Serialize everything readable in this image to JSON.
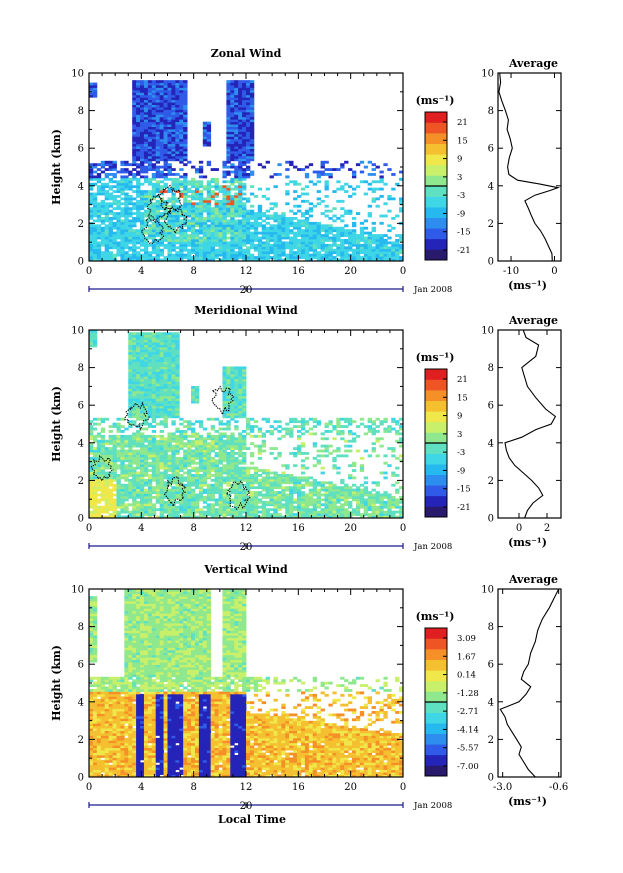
{
  "chart_data": [
    {
      "type": "heatmap",
      "title": "Zonal Wind",
      "ylabel": "Height (km)",
      "xlim": [
        0,
        24
      ],
      "ylim": [
        0,
        10
      ],
      "xticks": [
        "0",
        "4",
        "8",
        "12",
        "16",
        "20",
        "0"
      ],
      "yticks": [
        "0",
        "2",
        "4",
        "6",
        "8",
        "10"
      ],
      "date_label": "Jan 2008",
      "date_tick": "20",
      "colorbar": {
        "unit": "(ms⁻¹)",
        "ticks": [
          "21",
          "15",
          "9",
          "3",
          "-3",
          "-9",
          "-15",
          "-21"
        ],
        "min": -24,
        "max": 24
      },
      "average": {
        "title": "Average",
        "xlabel": "(ms⁻¹)",
        "xticks": [
          "-10",
          "0"
        ],
        "xlim": [
          -13,
          1.5
        ],
        "yticks": [
          "0",
          "2",
          "4",
          "6",
          "8",
          "10"
        ],
        "profile": [
          [
            -0.5,
            0
          ],
          [
            -0.6,
            0.4
          ],
          [
            -1.4,
            0.8
          ],
          [
            -2.2,
            1.2
          ],
          [
            -3.2,
            1.6
          ],
          [
            -4.5,
            2.0
          ],
          [
            -5.3,
            2.4
          ],
          [
            -6.0,
            2.8
          ],
          [
            -6.8,
            3.2
          ],
          [
            -4.5,
            3.5
          ],
          [
            -1.0,
            3.75
          ],
          [
            0.8,
            3.9
          ],
          [
            -3.5,
            4.1
          ],
          [
            -8.5,
            4.3
          ],
          [
            -10.5,
            4.6
          ],
          [
            -10.8,
            5.0
          ],
          [
            -10.4,
            5.5
          ],
          [
            -9.7,
            6.0
          ],
          [
            -10.2,
            6.5
          ],
          [
            -10.9,
            7.0
          ],
          [
            -10.6,
            7.5
          ],
          [
            -11.3,
            8.0
          ],
          [
            -12.1,
            8.5
          ],
          [
            -12.8,
            9.0
          ],
          [
            -12.4,
            9.5
          ],
          [
            -12.6,
            10.0
          ]
        ]
      },
      "seed": 11,
      "contours": [
        [
          4.9,
          1.6
        ],
        [
          5.3,
          2.8
        ],
        [
          6.6,
          2.2
        ],
        [
          6.2,
          3.3
        ]
      ]
    },
    {
      "type": "heatmap",
      "title": "Meridional Wind",
      "ylabel": "Height (km)",
      "xlim": [
        0,
        24
      ],
      "ylim": [
        0,
        10
      ],
      "xticks": [
        "0",
        "4",
        "8",
        "12",
        "16",
        "20",
        "0"
      ],
      "yticks": [
        "0",
        "2",
        "4",
        "6",
        "8",
        "10"
      ],
      "date_label": "Jan 2008",
      "date_tick": "20",
      "colorbar": {
        "unit": "(ms⁻¹)",
        "ticks": [
          "21",
          "15",
          "9",
          "3",
          "-3",
          "-9",
          "-15",
          "-21"
        ],
        "min": -24,
        "max": 24
      },
      "average": {
        "title": "Average",
        "xlabel": "(ms⁻¹)",
        "xticks": [
          "0",
          "2"
        ],
        "xlim": [
          -1.5,
          3.0
        ],
        "yticks": [
          "0",
          "2",
          "4",
          "6",
          "8",
          "10"
        ],
        "profile": [
          [
            0.4,
            0
          ],
          [
            0.6,
            0.4
          ],
          [
            1.0,
            0.8
          ],
          [
            1.7,
            1.2
          ],
          [
            1.4,
            1.6
          ],
          [
            0.9,
            2.0
          ],
          [
            0.3,
            2.4
          ],
          [
            -0.3,
            2.8
          ],
          [
            -0.7,
            3.2
          ],
          [
            -0.9,
            3.6
          ],
          [
            -1.0,
            4.0
          ],
          [
            0.2,
            4.3
          ],
          [
            1.2,
            4.7
          ],
          [
            2.3,
            5.0
          ],
          [
            2.6,
            5.4
          ],
          [
            1.9,
            5.8
          ],
          [
            1.2,
            6.4
          ],
          [
            0.6,
            7.0
          ],
          [
            0.4,
            7.5
          ],
          [
            0.2,
            8.0
          ],
          [
            1.2,
            8.6
          ],
          [
            1.4,
            9.2
          ],
          [
            0.5,
            9.6
          ],
          [
            0.3,
            10.0
          ]
        ]
      },
      "seed": 23,
      "contours": [
        [
          3.7,
          5.4
        ],
        [
          10.2,
          6.3
        ],
        [
          1.0,
          2.6
        ],
        [
          6.6,
          1.4
        ],
        [
          11.4,
          1.2
        ]
      ]
    },
    {
      "type": "heatmap",
      "title": "Vertical Wind",
      "xlabel": "Local Time",
      "ylabel": "Height (km)",
      "xlim": [
        0,
        24
      ],
      "ylim": [
        0,
        10
      ],
      "xticks": [
        "0",
        "4",
        "8",
        "12",
        "16",
        "20",
        "0"
      ],
      "yticks": [
        "0",
        "2",
        "4",
        "6",
        "8",
        "10"
      ],
      "date_label": "Jan 2008",
      "date_tick": "20",
      "colorbar": {
        "unit": "(ms⁻¹)",
        "ticks": [
          "3.09",
          "1.67",
          "0.14",
          "-1.28",
          "-2.71",
          "-4.14",
          "-5.57",
          "-7.00"
        ],
        "min": -7.7,
        "max": 3.8
      },
      "average": {
        "title": "Average",
        "xlabel": "(ms⁻¹)",
        "xticks": [
          "-3.0",
          "-0.6"
        ],
        "xlim": [
          -3.2,
          -0.5
        ],
        "yticks": [
          "0",
          "2",
          "4",
          "6",
          "8",
          "10"
        ],
        "profile": [
          [
            -1.6,
            0
          ],
          [
            -1.9,
            0.4
          ],
          [
            -2.1,
            0.8
          ],
          [
            -2.3,
            1.2
          ],
          [
            -2.2,
            1.6
          ],
          [
            -2.4,
            2.0
          ],
          [
            -2.6,
            2.4
          ],
          [
            -2.8,
            2.8
          ],
          [
            -2.9,
            3.2
          ],
          [
            -3.1,
            3.6
          ],
          [
            -2.3,
            4.0
          ],
          [
            -2.0,
            4.4
          ],
          [
            -1.8,
            4.8
          ],
          [
            -2.2,
            5.2
          ],
          [
            -2.1,
            5.6
          ],
          [
            -1.9,
            6.0
          ],
          [
            -1.8,
            6.6
          ],
          [
            -1.6,
            7.2
          ],
          [
            -1.5,
            7.8
          ],
          [
            -1.3,
            8.4
          ],
          [
            -1.0,
            9.0
          ],
          [
            -0.8,
            9.5
          ],
          [
            -0.6,
            10.0
          ]
        ]
      },
      "seed": 37,
      "contours": []
    }
  ]
}
